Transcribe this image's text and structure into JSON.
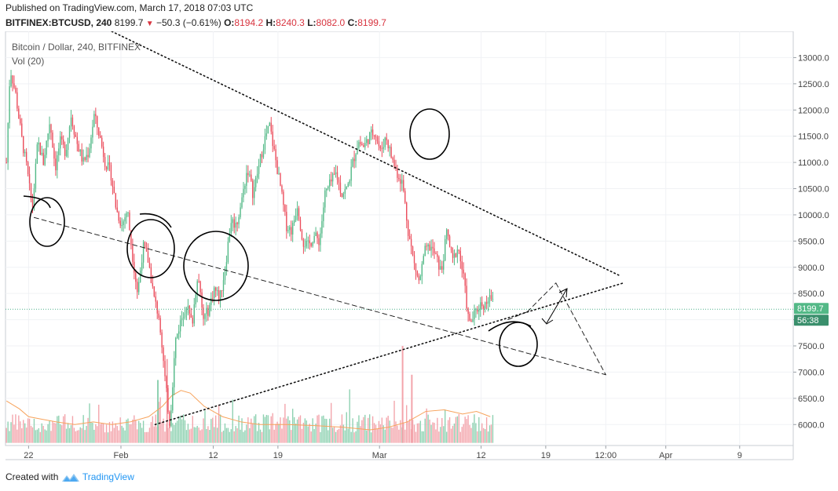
{
  "published_line": "Published on TradingView.com, March 17, 2018 07:03 UTC",
  "ticker": {
    "symbol": "BITFINEX:BTCUSD, 240",
    "last": "8199.7",
    "change": "−50.3 (−0.61%)",
    "o_label": "O:",
    "o": "8194.2",
    "h_label": "H:",
    "h": "8240.3",
    "l_label": "L:",
    "l": "8082.0",
    "c_label": "C:",
    "c": "8199.7"
  },
  "legend": {
    "title": "Bitcoin / Dollar, 240, BITFINEX",
    "volume": "Vol (20)"
  },
  "price_label": "8199.7",
  "time_label": "56:38",
  "footer": {
    "created": "Created with",
    "brand": "TradingView"
  },
  "colors": {
    "up": "#53b987",
    "down": "#eb4d5c",
    "vol_up": "#8ed1b1",
    "vol_down": "#f3a4ab",
    "ma": "#f7a35c",
    "last_line": "#4caf8a",
    "label_bg": "#53b987",
    "time_bg": "#3a8f6c"
  },
  "chart_data": {
    "type": "candlestick",
    "title": "Bitcoin / Dollar, 240, BITFINEX",
    "y_ticks": [
      6000,
      6500,
      7000,
      7500,
      8000,
      8500,
      9000,
      9500,
      10000,
      10500,
      11000,
      11500,
      12000,
      12500,
      13000
    ],
    "y_tick_labels": [
      "6000.0",
      "6500.0",
      "7000.0",
      "7500.0",
      "8000.0",
      "8500.0",
      "9000.0",
      "9500.0",
      "10000.0",
      "10500.0",
      "11000.0",
      "11500.0",
      "12000.0",
      "12500.0",
      "13000.0"
    ],
    "x_ticks": [
      {
        "label": "22",
        "day": 22
      },
      {
        "label": "Feb",
        "day": 32
      },
      {
        "label": "12",
        "day": 42
      },
      {
        "label": "19",
        "day": 49
      },
      {
        "label": "Mar",
        "day": 60
      },
      {
        "label": "12",
        "day": 71
      },
      {
        "label": "19",
        "day": 78
      },
      {
        "label": "12:00",
        "day": 84.5
      },
      {
        "label": "Apr",
        "day": 91
      },
      {
        "label": "9",
        "day": 99
      }
    ],
    "y_range": [
      5600,
      13500
    ],
    "x_range_day": [
      19.5,
      104.8
    ],
    "last_price": 8199.7,
    "price_path": [
      [
        19.6,
        11000
      ],
      [
        20.0,
        12800
      ],
      [
        20.6,
        12300
      ],
      [
        21.3,
        11400
      ],
      [
        21.8,
        10900
      ],
      [
        22.4,
        10100
      ],
      [
        23.0,
        11400
      ],
      [
        23.6,
        11000
      ],
      [
        24.3,
        11800
      ],
      [
        24.9,
        10900
      ],
      [
        25.4,
        11400
      ],
      [
        26.0,
        11200
      ],
      [
        26.6,
        11900
      ],
      [
        27.2,
        11400
      ],
      [
        27.9,
        11000
      ],
      [
        28.5,
        11200
      ],
      [
        29.1,
        11900
      ],
      [
        29.7,
        11500
      ],
      [
        30.3,
        11000
      ],
      [
        30.9,
        10800
      ],
      [
        31.5,
        10100
      ],
      [
        32.1,
        9800
      ],
      [
        32.7,
        10100
      ],
      [
        33.2,
        9300
      ],
      [
        33.8,
        8500
      ],
      [
        34.4,
        9400
      ],
      [
        35.0,
        9100
      ],
      [
        35.6,
        8400
      ],
      [
        36.2,
        8000
      ],
      [
        36.8,
        6800
      ],
      [
        37.3,
        6000
      ],
      [
        37.9,
        7600
      ],
      [
        38.5,
        8000
      ],
      [
        39.1,
        8300
      ],
      [
        39.7,
        7900
      ],
      [
        40.3,
        8900
      ],
      [
        40.9,
        8000
      ],
      [
        41.5,
        8200
      ],
      [
        42.1,
        8600
      ],
      [
        42.7,
        8400
      ],
      [
        43.3,
        9000
      ],
      [
        43.9,
        9900
      ],
      [
        44.5,
        9800
      ],
      [
        45.1,
        10300
      ],
      [
        45.7,
        10900
      ],
      [
        46.3,
        10400
      ],
      [
        46.9,
        10900
      ],
      [
        47.5,
        11400
      ],
      [
        48.1,
        11700
      ],
      [
        48.7,
        11100
      ],
      [
        49.3,
        10500
      ],
      [
        49.9,
        9800
      ],
      [
        50.5,
        9700
      ],
      [
        51.1,
        10200
      ],
      [
        51.7,
        9500
      ],
      [
        52.3,
        9400
      ],
      [
        52.9,
        9600
      ],
      [
        53.5,
        9500
      ],
      [
        54.1,
        10400
      ],
      [
        54.7,
        10600
      ],
      [
        55.3,
        10800
      ],
      [
        55.9,
        10400
      ],
      [
        56.5,
        10500
      ],
      [
        57.1,
        11000
      ],
      [
        57.7,
        11400
      ],
      [
        58.3,
        11300
      ],
      [
        58.9,
        11500
      ],
      [
        59.5,
        11600
      ],
      [
        60.1,
        11200
      ],
      [
        60.7,
        11500
      ],
      [
        61.3,
        11100
      ],
      [
        61.9,
        10800
      ],
      [
        62.5,
        10600
      ],
      [
        63.1,
        9700
      ],
      [
        63.7,
        9100
      ],
      [
        64.3,
        8700
      ],
      [
        64.9,
        9300
      ],
      [
        65.5,
        9400
      ],
      [
        66.1,
        9200
      ],
      [
        66.7,
        8900
      ],
      [
        67.3,
        9700
      ],
      [
        67.9,
        9100
      ],
      [
        68.5,
        9400
      ],
      [
        69.1,
        8800
      ],
      [
        69.7,
        7900
      ],
      [
        70.3,
        8100
      ],
      [
        70.9,
        8300
      ],
      [
        71.5,
        8300
      ],
      [
        72.0,
        8550
      ],
      [
        72.4,
        8200
      ]
    ],
    "volume_ma_path": [
      [
        19.6,
        6450
      ],
      [
        21.0,
        6300
      ],
      [
        22.0,
        6150
      ],
      [
        23.5,
        6100
      ],
      [
        25.0,
        6050
      ],
      [
        27.0,
        6000
      ],
      [
        29.0,
        6050
      ],
      [
        31.0,
        6000
      ],
      [
        33.0,
        6050
      ],
      [
        35.0,
        6150
      ],
      [
        36.5,
        6350
      ],
      [
        37.5,
        6550
      ],
      [
        38.5,
        6650
      ],
      [
        39.5,
        6600
      ],
      [
        41.0,
        6350
      ],
      [
        43.0,
        6150
      ],
      [
        45.0,
        6050
      ],
      [
        47.0,
        6000
      ],
      [
        50.0,
        6000
      ],
      [
        53.0,
        5980
      ],
      [
        56.0,
        5950
      ],
      [
        59.0,
        5900
      ],
      [
        61.0,
        5950
      ],
      [
        63.0,
        6050
      ],
      [
        65.0,
        6250
      ],
      [
        67.0,
        6280
      ],
      [
        69.0,
        6200
      ],
      [
        70.5,
        6250
      ],
      [
        72.0,
        6150
      ]
    ],
    "volume_spikes": [
      {
        "day": 36.0,
        "top": 6850,
        "dir": "up"
      },
      {
        "day": 37.0,
        "top": 7250,
        "dir": "down"
      },
      {
        "day": 62.5,
        "top": 7500,
        "dir": "down"
      },
      {
        "day": 63.5,
        "top": 6950,
        "dir": "down"
      }
    ],
    "drawings": [
      {
        "kind": "dotted",
        "from": [
          31.0,
          13500
        ],
        "to": [
          85.9,
          8850
        ]
      },
      {
        "kind": "dotted",
        "from": [
          35.7,
          6000
        ],
        "to": [
          86.4,
          8700
        ]
      },
      {
        "kind": "dashed",
        "from": [
          22.6,
          9950
        ],
        "to": [
          84.5,
          6950
        ]
      },
      {
        "kind": "dashed",
        "from": [
          79.1,
          8700
        ],
        "to": [
          84.5,
          6950
        ]
      },
      {
        "kind": "dashed",
        "from": [
          73.9,
          8000
        ],
        "to": [
          76.0,
          8150
        ]
      },
      {
        "kind": "dashed",
        "from": [
          76.0,
          8150
        ],
        "to": [
          79.1,
          8700
        ]
      }
    ]
  }
}
